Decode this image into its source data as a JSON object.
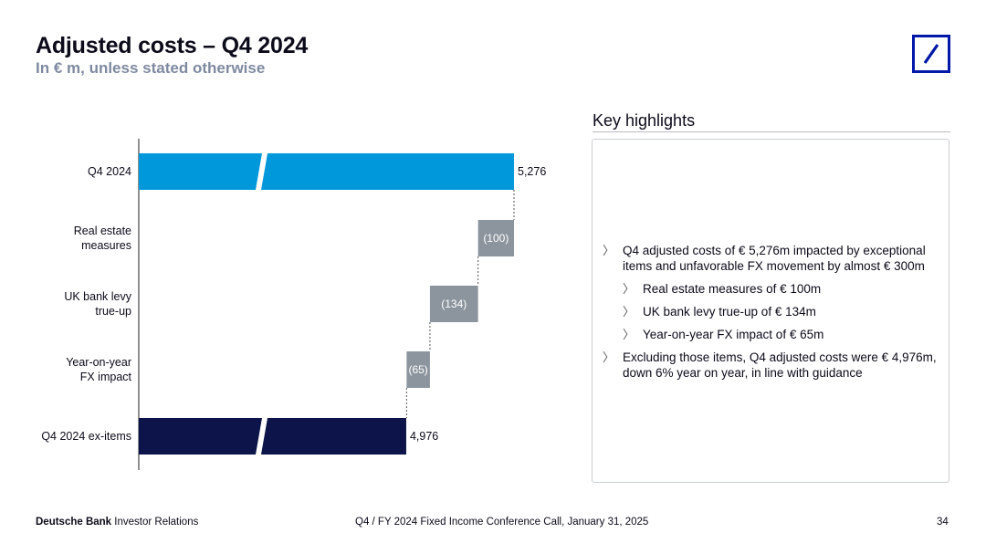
{
  "header": {
    "title": "Adjusted costs – Q4 2024",
    "subtitle": "In € m, unless stated otherwise"
  },
  "colors": {
    "start_bar": "#0098db",
    "end_bar": "#0c1449",
    "step_bar": "#8c959e",
    "logo_blue": "#0018a8"
  },
  "chart_data": {
    "type": "waterfall",
    "categories": [
      "Q4 2024",
      "Real estate measures",
      "UK bank levy true-up",
      "Year-on-year FX impact",
      "Q4 2024 ex-items"
    ],
    "category_label_lines": [
      [
        "Q4 2024"
      ],
      [
        "Real estate",
        "measures"
      ],
      [
        "UK bank levy",
        "true-up"
      ],
      [
        "Year-on-year",
        "FX impact"
      ],
      [
        "Q4 2024 ex-items"
      ]
    ],
    "values": [
      5276,
      -100,
      -134,
      -65,
      4976
    ],
    "value_labels": [
      "5,276",
      "(100)",
      "(134)",
      "(65)",
      "4,976"
    ],
    "bar_kinds": [
      "total",
      "delta",
      "delta",
      "delta",
      "total"
    ],
    "axis_break": {
      "low": 700,
      "high": 4600
    },
    "orientation": "horizontal"
  },
  "highlights": {
    "title": "Key highlights",
    "items": [
      {
        "level": 1,
        "text": "Q4 adjusted costs of € 5,276m impacted by exceptional items and unfavorable FX movement by almost € 300m"
      },
      {
        "level": 2,
        "text": "Real estate measures of € 100m"
      },
      {
        "level": 2,
        "text": "UK bank levy true-up of € 134m"
      },
      {
        "level": 2,
        "text": "Year-on-year FX impact of € 65m"
      },
      {
        "level": 1,
        "text": "Excluding those items, Q4 adjusted costs were € 4,976m, down 6% year on year, in line with guidance"
      }
    ],
    "bullet_glyph": "〉"
  },
  "footer": {
    "brand": "Deutsche Bank",
    "brand_suffix": "Investor Relations",
    "event": "Q4 / FY 2024 Fixed Income Conference Call, January 31, 2025",
    "page": "34"
  }
}
